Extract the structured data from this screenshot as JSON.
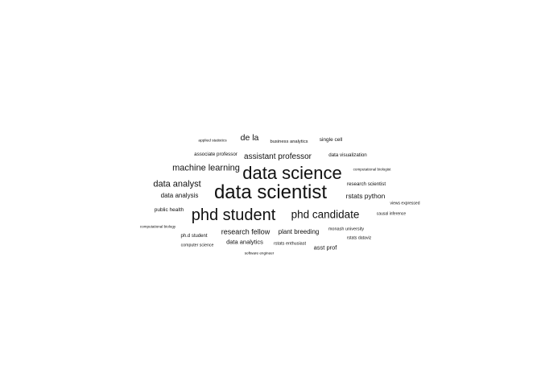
{
  "cloud": {
    "text_color": "#111111",
    "background": "#ffffff",
    "words": [
      {
        "key": "w1",
        "text": "data scientist"
      },
      {
        "key": "w2",
        "text": "data science"
      },
      {
        "key": "w3",
        "text": "phd student"
      },
      {
        "key": "w4",
        "text": "phd candidate"
      },
      {
        "key": "w5",
        "text": "machine learning"
      },
      {
        "key": "w6",
        "text": "data analyst"
      },
      {
        "key": "w7",
        "text": "assistant professor"
      },
      {
        "key": "w8",
        "text": "de la"
      },
      {
        "key": "w9",
        "text": "rstats python"
      },
      {
        "key": "w10",
        "text": "research fellow"
      },
      {
        "key": "w11",
        "text": "plant breeding"
      },
      {
        "key": "w12",
        "text": "data analysis"
      },
      {
        "key": "w13",
        "text": "data analytics"
      },
      {
        "key": "w14",
        "text": "asst prof"
      },
      {
        "key": "w15",
        "text": "public health"
      },
      {
        "key": "w16",
        "text": "associate professor"
      },
      {
        "key": "w17",
        "text": "single cell"
      },
      {
        "key": "w18",
        "text": "data visualization"
      },
      {
        "key": "w19",
        "text": "research scientist"
      },
      {
        "key": "w20",
        "text": "business analytics"
      },
      {
        "key": "w21",
        "text": "ph.d student"
      },
      {
        "key": "w22",
        "text": "monash university"
      },
      {
        "key": "w23",
        "text": "rstats enthusiast"
      },
      {
        "key": "w24",
        "text": "rstats dataviz"
      },
      {
        "key": "w25",
        "text": "computer science"
      },
      {
        "key": "w26",
        "text": "causal inference"
      },
      {
        "key": "w27",
        "text": "views expressed"
      },
      {
        "key": "w28",
        "text": "applied statistics"
      },
      {
        "key": "w29",
        "text": "computational biologist"
      },
      {
        "key": "w30",
        "text": "computational biology"
      },
      {
        "key": "w31",
        "text": "software engineer"
      }
    ]
  }
}
